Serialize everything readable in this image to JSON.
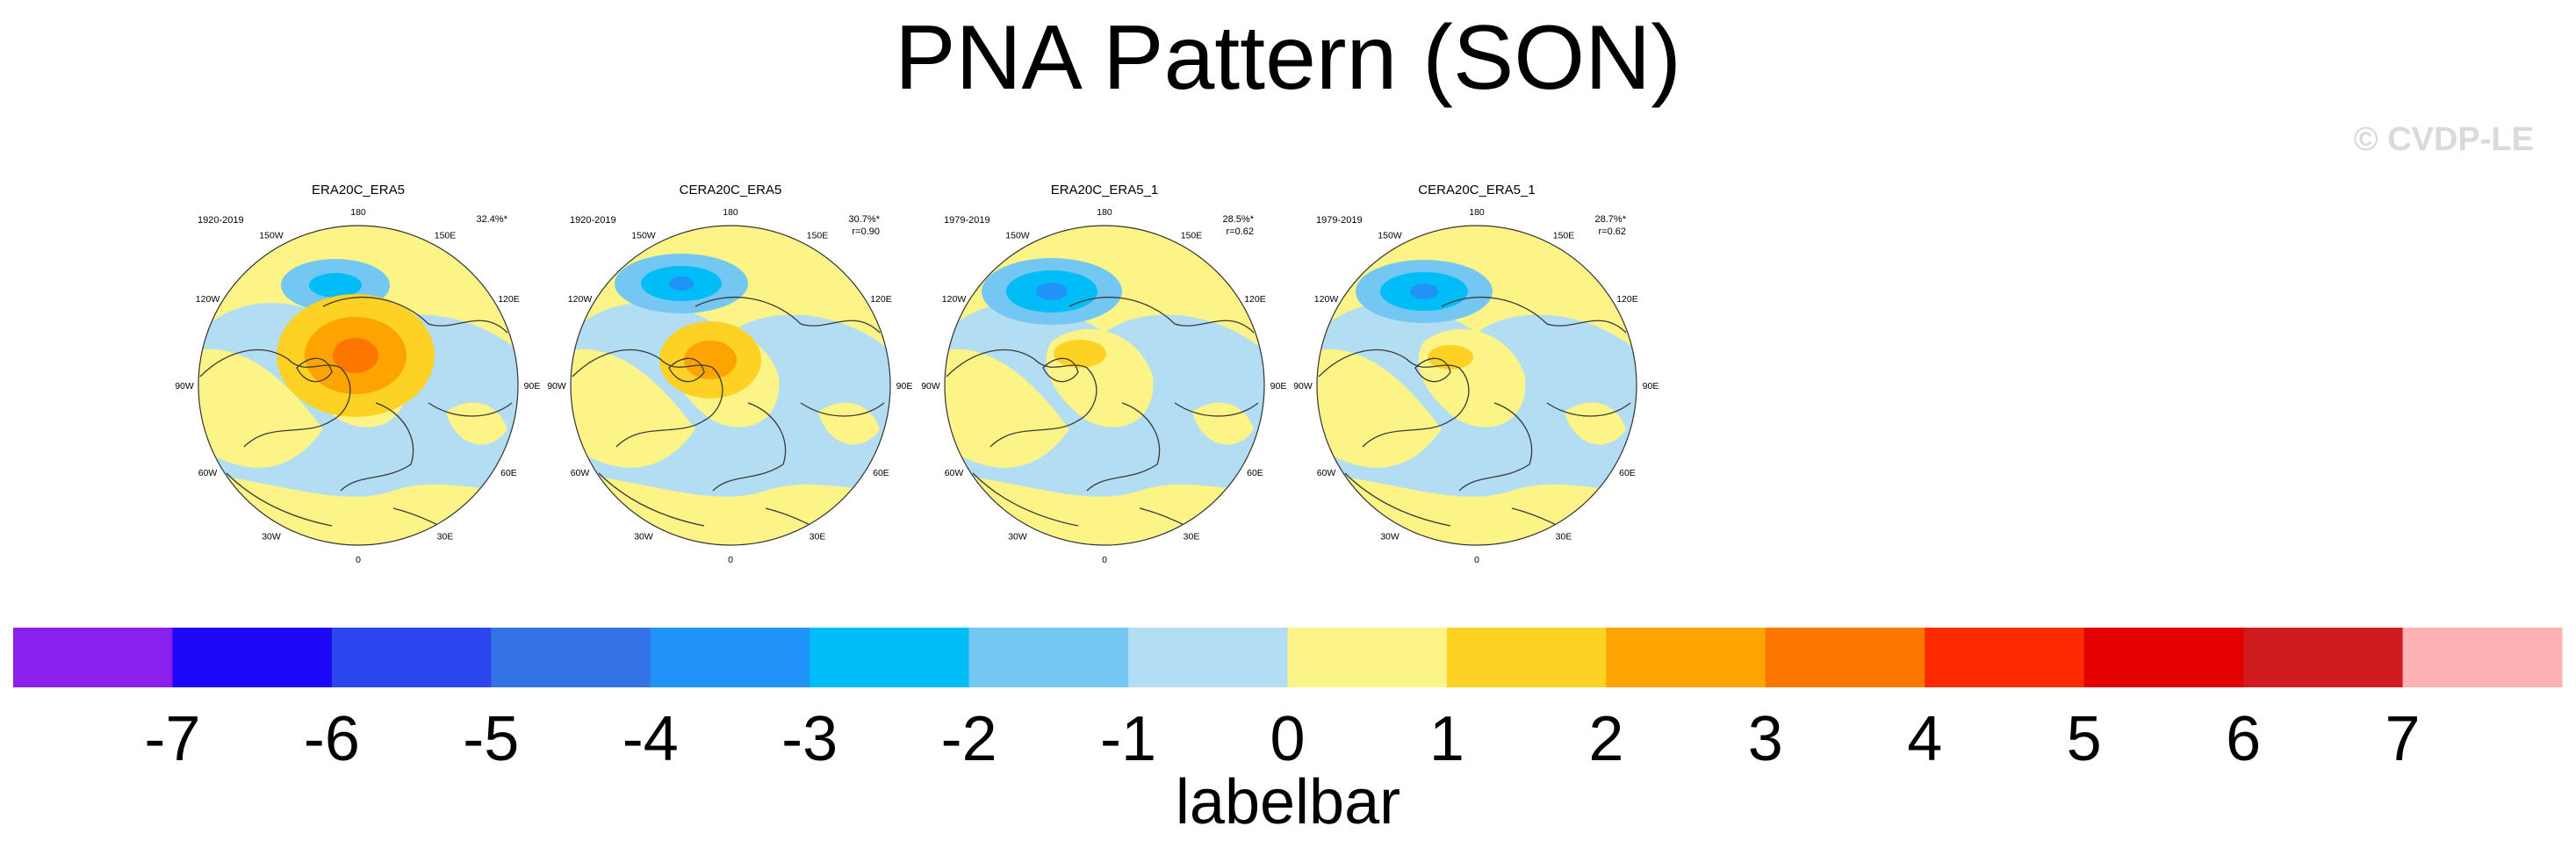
{
  "title": "PNA Pattern (SON)",
  "watermark": "© CVDP-LE",
  "colors": {
    "background": "#ffffff",
    "coast": "#3a3a3a",
    "levels": [
      "#8a1fee",
      "#1e06f7",
      "#2c46ef",
      "#3373e6",
      "#1f93f7",
      "#00bcf7",
      "#74c6f3",
      "#b2ddf2",
      "#fdf488",
      "#fdd225",
      "#fda302",
      "#fd7600",
      "#fe2a00",
      "#e50000",
      "#d01b1f",
      "#feb2b3"
    ]
  },
  "panels": [
    {
      "title": "ERA20C_ERA5",
      "years": "1920-2019",
      "stat_pct": "32.4%*",
      "stat_r": "",
      "longitude_labels": {
        "top": "180",
        "tl": "150W",
        "tr": "150E",
        "ul": "120W",
        "ur": "120E",
        "l": "90W",
        "r": "90E",
        "ll": "60W",
        "lr": "60E",
        "bl": "30W",
        "br": "30E",
        "bottom": "0"
      }
    },
    {
      "title": "CERA20C_ERA5",
      "years": "1920-2019",
      "stat_pct": "30.7%*",
      "stat_r": "r=0.90",
      "longitude_labels": {
        "top": "180",
        "tl": "150W",
        "tr": "150E",
        "ul": "120W",
        "ur": "120E",
        "l": "90W",
        "r": "90E",
        "ll": "60W",
        "lr": "60E",
        "bl": "30W",
        "br": "30E",
        "bottom": "0"
      }
    },
    {
      "title": "ERA20C_ERA5_1",
      "years": "1979-2019",
      "stat_pct": "28.5%*",
      "stat_r": "r=0.62",
      "longitude_labels": {
        "top": "180",
        "tl": "150W",
        "tr": "150E",
        "ul": "120W",
        "ur": "120E",
        "l": "90W",
        "r": "90E",
        "ll": "60W",
        "lr": "60E",
        "bl": "30W",
        "br": "30E",
        "bottom": "0"
      }
    },
    {
      "title": "CERA20C_ERA5_1",
      "years": "1979-2019",
      "stat_pct": "28.7%*",
      "stat_r": "r=0.62",
      "longitude_labels": {
        "top": "180",
        "tl": "150W",
        "tr": "150E",
        "ul": "120W",
        "ur": "120E",
        "l": "90W",
        "r": "90E",
        "ll": "60W",
        "lr": "60E",
        "bl": "30W",
        "br": "30E",
        "bottom": "0"
      }
    }
  ],
  "labelbar": {
    "ticks": [
      "-7",
      "-6",
      "-5",
      "-4",
      "-3",
      "-2",
      "-1",
      "0",
      "1",
      "2",
      "3",
      "4",
      "5",
      "6",
      "7"
    ],
    "label": "labelbar"
  }
}
